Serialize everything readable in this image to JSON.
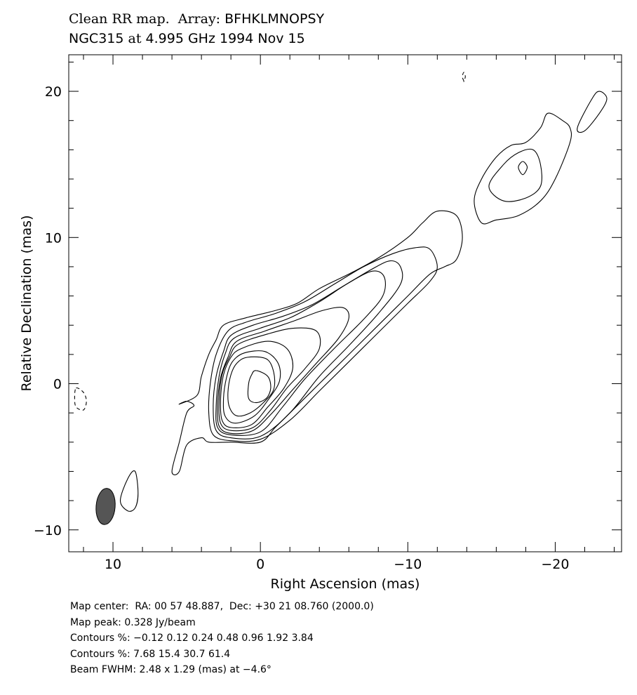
{
  "title": {
    "line1_prefix": "Clean RR map.  Array:",
    "line1_array": "BFHKLMNOPSY",
    "line2_source": "NGC315",
    "line2_at": "at",
    "line2_rest": "4.995 GHz 1994 Nov 15"
  },
  "chart_data": {
    "type": "contour",
    "xlabel": "Right Ascension  (mas)",
    "ylabel": "Relative Declination  (mas)",
    "xlim": [
      13,
      -24.5
    ],
    "ylim": [
      -11.5,
      22.5
    ],
    "x_ticks": [
      10,
      0,
      -10,
      -20
    ],
    "x_tick_labels": [
      "10",
      "0",
      "−10",
      "−20"
    ],
    "y_ticks": [
      -10,
      0,
      10,
      20
    ],
    "y_tick_labels": [
      "−10",
      "0",
      "10",
      "20"
    ],
    "map_peak_jy_per_beam": 0.328,
    "contour_levels_percent": [
      -0.12,
      0.12,
      0.24,
      0.48,
      0.96,
      1.92,
      3.84,
      7.68,
      15.4,
      30.7,
      61.4
    ],
    "beam": {
      "major_mas": 2.48,
      "minor_mas": 1.29,
      "pa_deg": -4.6,
      "center": [
        10.5,
        -8.4
      ]
    },
    "contours": [
      {
        "level": 0.12,
        "points": [
          [
            2.5,
            4
          ],
          [
            1,
            4.5
          ],
          [
            -1,
            5
          ],
          [
            -2.5,
            5.5
          ],
          [
            -4,
            6.5
          ],
          [
            -6,
            7.5
          ],
          [
            -8,
            8.6
          ],
          [
            -10,
            10
          ],
          [
            -11,
            11
          ],
          [
            -12,
            11.8
          ],
          [
            -13.3,
            11.5
          ],
          [
            -13.7,
            10
          ],
          [
            -13.3,
            8.5
          ],
          [
            -12.5,
            8
          ],
          [
            -11.5,
            7.5
          ],
          [
            -10,
            6
          ],
          [
            -8,
            4
          ],
          [
            -6,
            2
          ],
          [
            -4,
            0
          ],
          [
            -2,
            -2
          ],
          [
            -1,
            -3
          ],
          [
            0,
            -4
          ],
          [
            2,
            -4
          ],
          [
            3.5,
            -4
          ],
          [
            4,
            -3.7
          ],
          [
            5,
            -4.2
          ],
          [
            5.5,
            -6
          ],
          [
            6,
            -6
          ],
          [
            5.5,
            -4
          ],
          [
            5,
            -2
          ],
          [
            4.5,
            -1.5
          ],
          [
            5,
            -1.2
          ],
          [
            5.5,
            -1.4
          ],
          [
            4.3,
            -0.8
          ],
          [
            4,
            0.5
          ],
          [
            3.5,
            2
          ],
          [
            3,
            3
          ]
        ]
      },
      {
        "level": 0.12,
        "points": [
          [
            -14.5,
            12.5
          ],
          [
            -15,
            14
          ],
          [
            -16,
            15.5
          ],
          [
            -17,
            16.3
          ],
          [
            -18,
            16.5
          ],
          [
            -19,
            17.5
          ],
          [
            -19.5,
            18.5
          ],
          [
            -20.5,
            18
          ],
          [
            -21,
            17.5
          ],
          [
            -21,
            16.5
          ],
          [
            -20,
            14
          ],
          [
            -19,
            12.5
          ],
          [
            -17.5,
            11.5
          ],
          [
            -16,
            11.2
          ],
          [
            -15,
            11
          ]
        ]
      },
      {
        "level": 0.12,
        "points": [
          [
            -21.5,
            17.5
          ],
          [
            -22.5,
            19.5
          ],
          [
            -23,
            20
          ],
          [
            -23.5,
            19.5
          ],
          [
            -23,
            18.5
          ],
          [
            -22,
            17.3
          ]
        ]
      },
      {
        "level": 0.12,
        "points": [
          [
            8.5,
            -6
          ],
          [
            9,
            -6.5
          ],
          [
            9.5,
            -8
          ],
          [
            9,
            -8.7
          ],
          [
            8.5,
            -8.5
          ],
          [
            8.3,
            -7.5
          ]
        ]
      },
      {
        "level": 0.24,
        "points": [
          [
            2.2,
            3.6
          ],
          [
            1,
            4.2
          ],
          [
            -1,
            4.8
          ],
          [
            -3,
            5.6
          ],
          [
            -5,
            6.8
          ],
          [
            -7,
            8
          ],
          [
            -9,
            8.9
          ],
          [
            -10.5,
            9.3
          ],
          [
            -11.5,
            9.2
          ],
          [
            -12,
            8
          ],
          [
            -11.5,
            7
          ],
          [
            -10,
            5.5
          ],
          [
            -8,
            3.5
          ],
          [
            -6,
            1.5
          ],
          [
            -4,
            -0.5
          ],
          [
            -2,
            -2.5
          ],
          [
            0,
            -3.8
          ],
          [
            2,
            -3.9
          ],
          [
            3.2,
            -3.5
          ],
          [
            3.5,
            -2
          ],
          [
            3.4,
            0
          ],
          [
            3,
            2
          ]
        ]
      },
      {
        "level": 0.24,
        "points": [
          [
            -15.5,
            13.5
          ],
          [
            -16.5,
            15
          ],
          [
            -17.5,
            15.8
          ],
          [
            -18.5,
            16
          ],
          [
            -19,
            15
          ],
          [
            -19,
            13.5
          ],
          [
            -18,
            12.7
          ],
          [
            -16.5,
            12.5
          ]
        ]
      },
      {
        "level": 0.48,
        "points": [
          [
            2,
            3.3
          ],
          [
            0.5,
            4
          ],
          [
            -1.5,
            4.6
          ],
          [
            -3.5,
            5.4
          ],
          [
            -5.5,
            6.6
          ],
          [
            -7.5,
            7.8
          ],
          [
            -8.8,
            8.4
          ],
          [
            -9.5,
            8
          ],
          [
            -9.5,
            6.8
          ],
          [
            -8,
            4.8
          ],
          [
            -6,
            2.6
          ],
          [
            -4,
            0.5
          ],
          [
            -2,
            -2
          ],
          [
            0,
            -3.6
          ],
          [
            2,
            -3.7
          ],
          [
            3,
            -3.2
          ],
          [
            3.2,
            -1.5
          ],
          [
            3,
            0.5
          ],
          [
            2.5,
            2.2
          ]
        ]
      },
      {
        "level": 0.48,
        "points": [
          [
            -17.5,
            14.8
          ],
          [
            -17.8,
            15.2
          ],
          [
            -18.1,
            14.8
          ],
          [
            -17.8,
            14.3
          ]
        ]
      },
      {
        "level": 0.96,
        "points": [
          [
            1.8,
            3.1
          ],
          [
            0,
            3.8
          ],
          [
            -2,
            4.5
          ],
          [
            -4,
            5.6
          ],
          [
            -6,
            6.9
          ],
          [
            -7.6,
            7.7
          ],
          [
            -8.4,
            7.3
          ],
          [
            -8.3,
            6
          ],
          [
            -7,
            4.4
          ],
          [
            -5,
            2.4
          ],
          [
            -3,
            0.3
          ],
          [
            -1.5,
            -1.6
          ],
          [
            0,
            -3.3
          ],
          [
            2,
            -3.5
          ],
          [
            2.9,
            -3
          ],
          [
            3,
            -1.5
          ],
          [
            2.8,
            0.5
          ],
          [
            2.4,
            2
          ]
        ]
      },
      {
        "level": 1.92,
        "points": [
          [
            1.6,
            2.9
          ],
          [
            -0.3,
            3.6
          ],
          [
            -2.3,
            4.3
          ],
          [
            -4.2,
            5
          ],
          [
            -5.6,
            5.2
          ],
          [
            -6,
            4.5
          ],
          [
            -5.3,
            3.1
          ],
          [
            -3.8,
            1.4
          ],
          [
            -2.2,
            -0.4
          ],
          [
            -0.8,
            -2
          ],
          [
            0.5,
            -3.2
          ],
          [
            2,
            -3.4
          ],
          [
            2.8,
            -2.9
          ],
          [
            2.9,
            -1.4
          ],
          [
            2.7,
            0.4
          ],
          [
            2.2,
            1.8
          ]
        ]
      },
      {
        "level": 3.84,
        "points": [
          [
            1.5,
            2.7
          ],
          [
            -0.5,
            3.4
          ],
          [
            -2.3,
            3.8
          ],
          [
            -3.8,
            3.6
          ],
          [
            -4,
            2.4
          ],
          [
            -3,
            1
          ],
          [
            -1.8,
            -0.3
          ],
          [
            -0.7,
            -1.8
          ],
          [
            0.5,
            -3
          ],
          [
            2,
            -3.2
          ],
          [
            2.7,
            -2.7
          ],
          [
            2.8,
            -1.2
          ],
          [
            2.6,
            0.6
          ],
          [
            2.1,
            1.8
          ]
        ]
      },
      {
        "level": 7.68,
        "points": [
          [
            1.3,
            2.4
          ],
          [
            -0.5,
            2.9
          ],
          [
            -1.8,
            2.4
          ],
          [
            -2.2,
            1.1
          ],
          [
            -1.6,
            -0.3
          ],
          [
            -0.5,
            -1.6
          ],
          [
            0.6,
            -2.8
          ],
          [
            2,
            -3
          ],
          [
            2.6,
            -2.5
          ],
          [
            2.7,
            -1.1
          ],
          [
            2.5,
            0.6
          ],
          [
            2,
            1.8
          ]
        ]
      },
      {
        "level": 15.4,
        "points": [
          [
            1.1,
            2.1
          ],
          [
            -0.3,
            2.2
          ],
          [
            -1.2,
            1.4
          ],
          [
            -1.3,
            0.2
          ],
          [
            -0.6,
            -1
          ],
          [
            0.4,
            -2.2
          ],
          [
            1.7,
            -2.7
          ],
          [
            2.4,
            -2.2
          ],
          [
            2.5,
            -1
          ],
          [
            2.3,
            0.4
          ],
          [
            1.9,
            1.5
          ]
        ]
      },
      {
        "level": 30.7,
        "points": [
          [
            0.9,
            1.8
          ],
          [
            -0.4,
            1.7
          ],
          [
            -0.9,
            0.8
          ],
          [
            -0.9,
            -0.4
          ],
          [
            -0.2,
            -1.3
          ],
          [
            0.7,
            -2
          ],
          [
            1.6,
            -2.2
          ],
          [
            2.1,
            -1.6
          ],
          [
            2.2,
            -0.6
          ],
          [
            2,
            0.6
          ],
          [
            1.6,
            1.4
          ]
        ]
      },
      {
        "level": 61.4,
        "points": [
          [
            0.3,
            0.9
          ],
          [
            -0.5,
            0.5
          ],
          [
            -0.7,
            -0.3
          ],
          [
            -0.4,
            -1
          ],
          [
            0.3,
            -1.3
          ],
          [
            0.8,
            -1
          ],
          [
            0.8,
            0
          ],
          [
            0.6,
            0.6
          ]
        ]
      },
      {
        "level": -0.12,
        "points": [
          [
            12.5,
            -0.3
          ],
          [
            12,
            -0.6
          ],
          [
            11.8,
            -1.2
          ],
          [
            12,
            -1.8
          ],
          [
            12.5,
            -1.6
          ],
          [
            12.6,
            -1
          ]
        ]
      },
      {
        "level": -0.12,
        "points": [
          [
            -13.8,
            20.7
          ],
          [
            -13.7,
            21
          ],
          [
            -13.8,
            21.3
          ],
          [
            -13.9,
            21
          ],
          [
            -13.8,
            20.7
          ]
        ]
      }
    ]
  },
  "footer": {
    "map_center": "Map center:  RA: 00 57 48.887,  Dec: +30 21 08.760 (2000.0)",
    "map_peak": "Map peak: 0.328 Jy/beam",
    "contours1": "Contours %: −0.12 0.12 0.24 0.48 0.96 1.92 3.84",
    "contours2": "Contours %: 7.68 15.4 30.7 61.4",
    "beam": "Beam FWHM: 2.48 x 1.29 (mas) at −4.6°"
  },
  "colors": {
    "axes": "#000000",
    "contour": "#000000",
    "beam_fill": "#555555"
  }
}
